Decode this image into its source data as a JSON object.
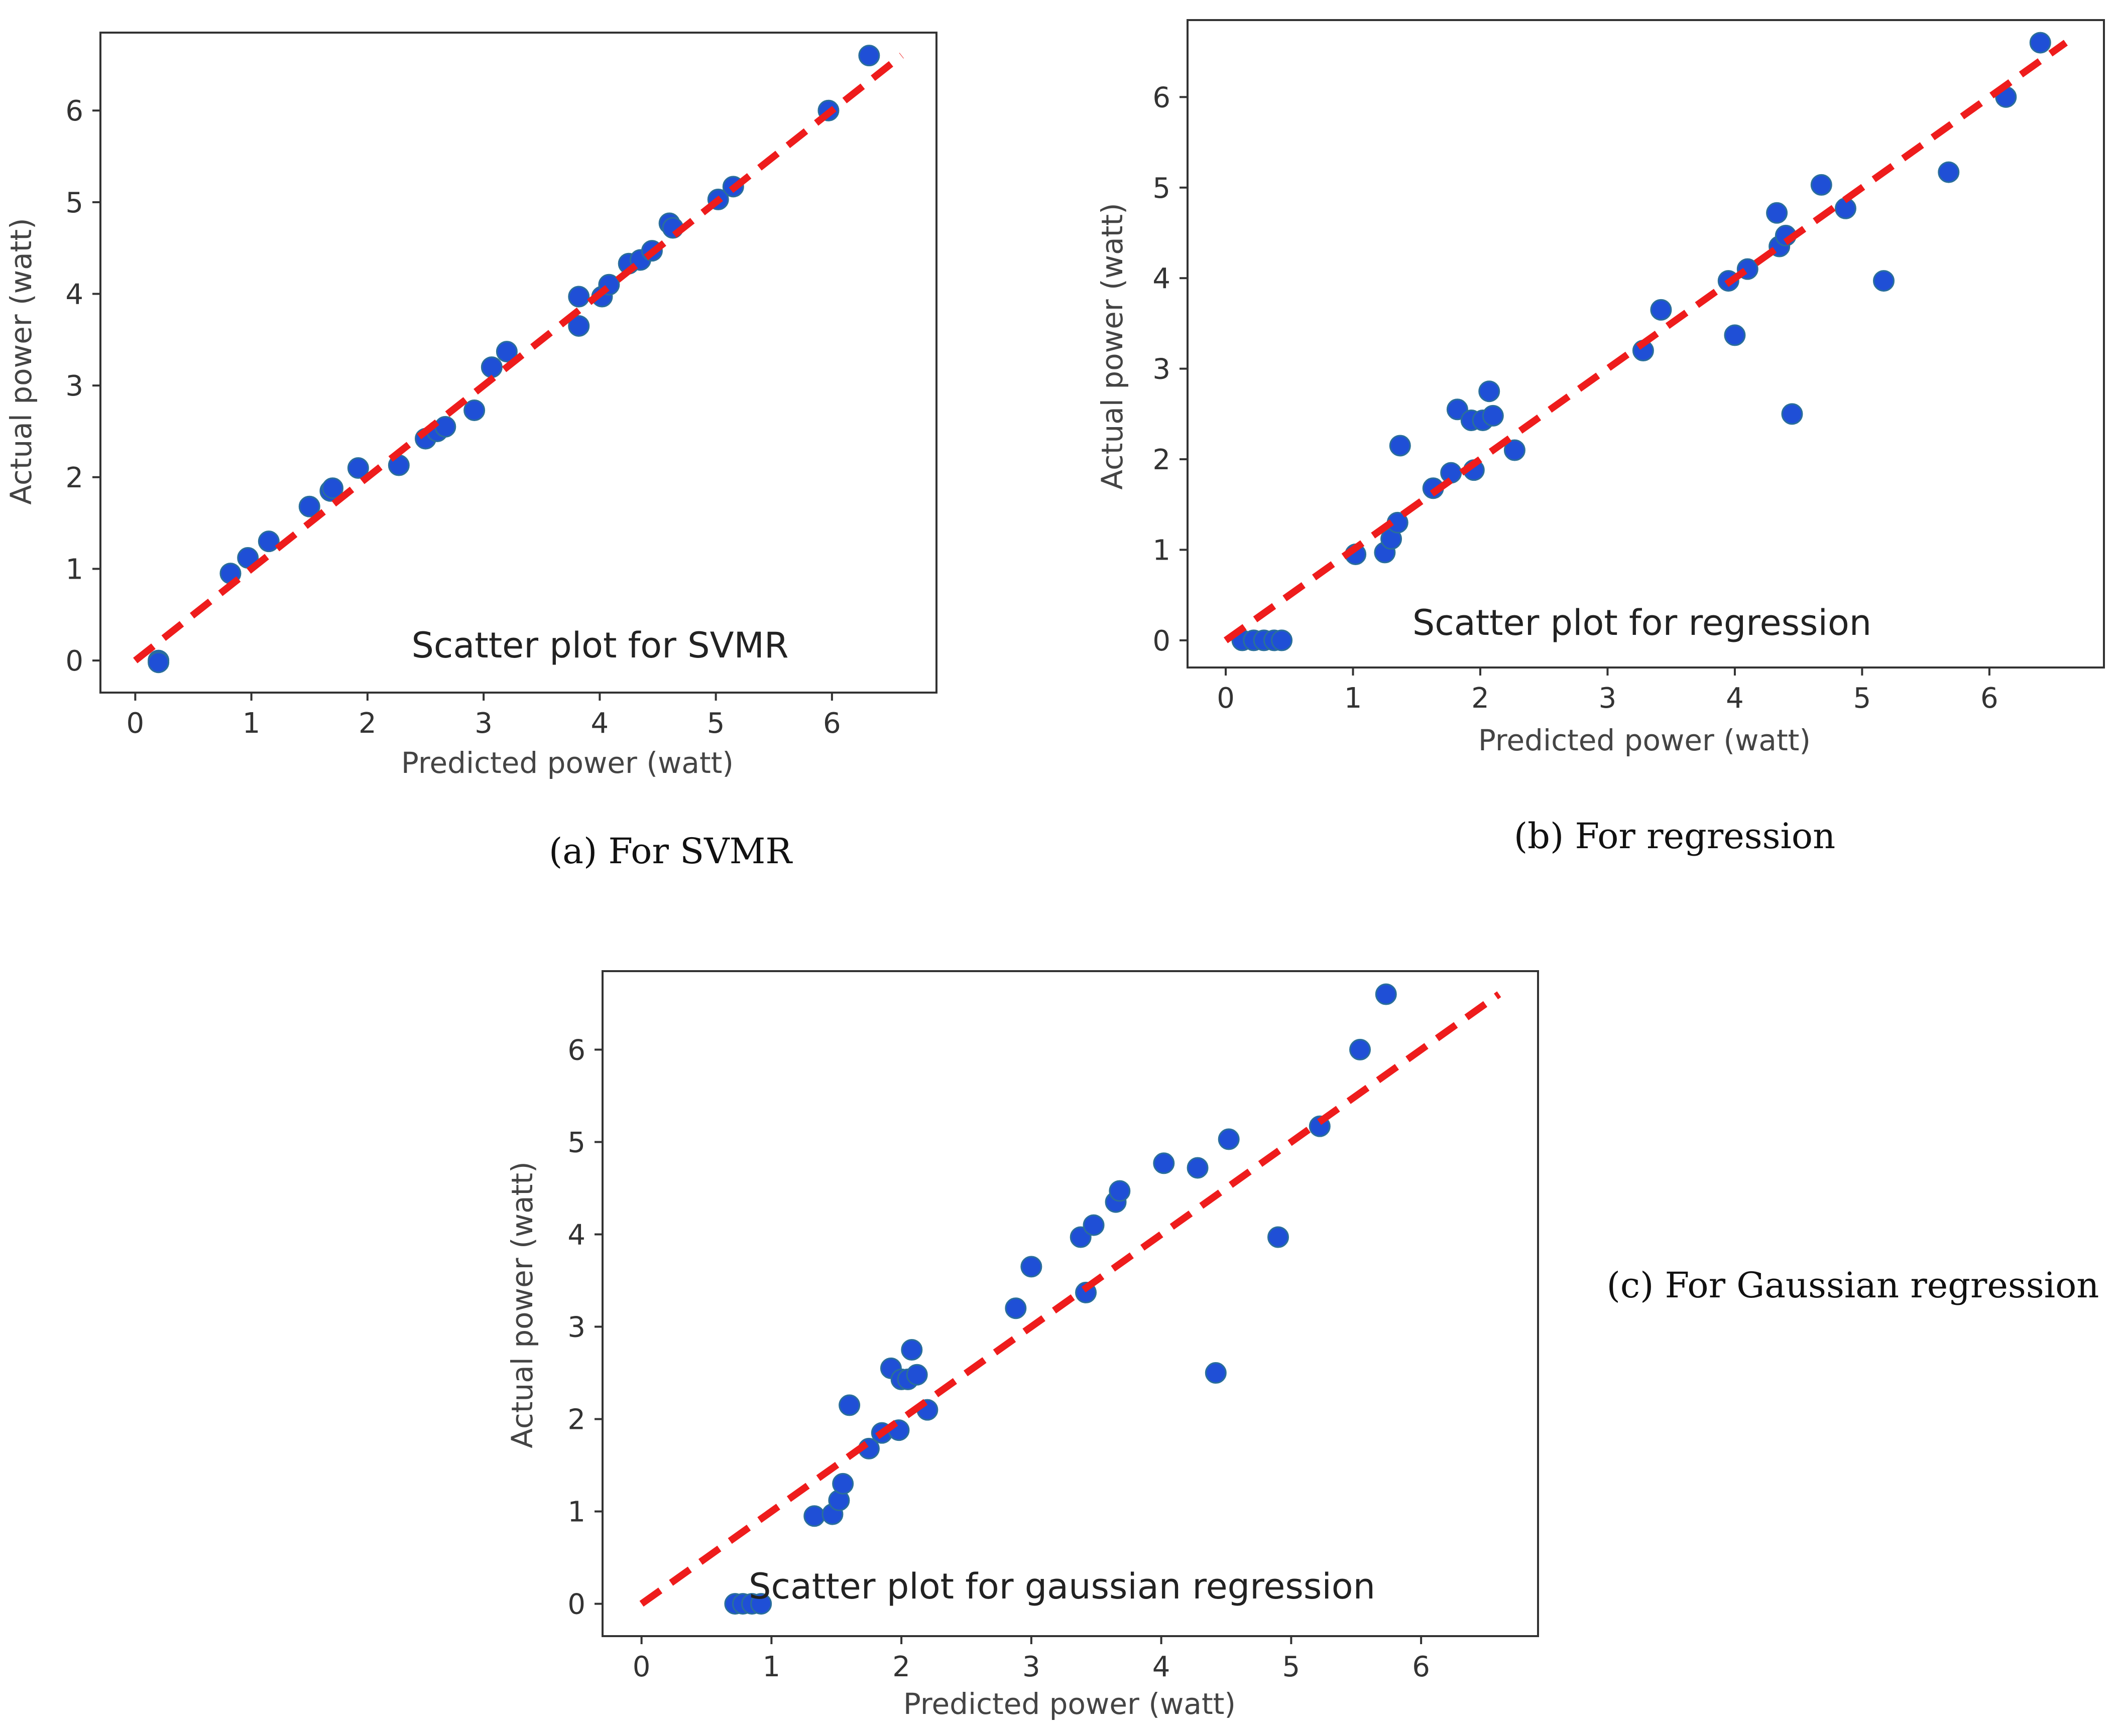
{
  "chart_data": [
    {
      "type": "scatter",
      "caption": "(a) For SVMR",
      "annotation": "Scatter plot for SVMR",
      "xlabel": "Predicted power (watt)",
      "ylabel": "Actual power (watt)",
      "xlim": [
        -0.3,
        6.9
      ],
      "ylim": [
        -0.35,
        6.85
      ],
      "xticks": [
        "0",
        "1",
        "2",
        "3",
        "4",
        "5",
        "6"
      ],
      "yticks": [
        "0",
        "1",
        "2",
        "3",
        "4",
        "5",
        "6"
      ],
      "point_color": "#1f4fd6",
      "line_color": "#ee1c1c",
      "reference_line": {
        "x": [
          0,
          6.6
        ],
        "y": [
          0,
          6.6
        ]
      },
      "x": [
        0.2,
        0.2,
        0.82,
        0.97,
        1.15,
        1.5,
        1.68,
        1.7,
        1.92,
        2.27,
        2.5,
        2.6,
        2.67,
        2.92,
        3.07,
        3.2,
        3.82,
        3.82,
        4.02,
        4.08,
        4.25,
        4.35,
        4.45,
        4.6,
        4.63,
        5.02,
        5.15,
        5.97,
        6.32
      ],
      "y": [
        0.0,
        -0.02,
        0.95,
        1.12,
        1.3,
        1.68,
        1.85,
        1.88,
        2.1,
        2.13,
        2.42,
        2.5,
        2.55,
        2.73,
        3.2,
        3.37,
        3.97,
        3.65,
        3.97,
        4.1,
        4.33,
        4.37,
        4.47,
        4.77,
        4.72,
        5.03,
        5.17,
        6.0,
        6.6
      ]
    },
    {
      "type": "scatter",
      "caption": "(b) For regression",
      "annotation": "Scatter plot for regression",
      "xlabel": "Predicted power (watt)",
      "ylabel": "Actual power (watt)",
      "xlim": [
        -0.3,
        6.9
      ],
      "ylim": [
        -0.3,
        6.85
      ],
      "xticks": [
        "0",
        "1",
        "2",
        "3",
        "4",
        "5",
        "6"
      ],
      "yticks": [
        "0",
        "1",
        "2",
        "3",
        "4",
        "5",
        "6"
      ],
      "point_color": "#1f4fd6",
      "line_color": "#ee1c1c",
      "reference_line": {
        "x": [
          0,
          6.6
        ],
        "y": [
          0,
          6.6
        ]
      },
      "x": [
        0.13,
        0.22,
        0.3,
        0.38,
        0.44,
        1.02,
        1.25,
        1.3,
        1.35,
        1.37,
        1.63,
        1.77,
        1.82,
        1.93,
        1.95,
        2.02,
        2.07,
        2.1,
        2.27,
        3.28,
        3.42,
        3.95,
        4.0,
        4.1,
        4.33,
        4.35,
        4.4,
        4.45,
        4.68,
        4.87,
        5.17,
        5.68,
        6.13,
        6.4
      ],
      "y": [
        0.0,
        0.0,
        0.0,
        0.0,
        0.0,
        0.95,
        0.97,
        1.12,
        1.3,
        2.15,
        1.68,
        1.85,
        2.55,
        2.43,
        1.88,
        2.43,
        2.75,
        2.48,
        2.1,
        3.2,
        3.65,
        3.97,
        3.37,
        4.1,
        4.72,
        4.35,
        4.47,
        2.5,
        5.03,
        4.77,
        3.97,
        5.17,
        6.0,
        6.6
      ]
    },
    {
      "type": "scatter",
      "caption": "(c) For Gaussian regression",
      "annotation": "Scatter plot for gaussian regression",
      "xlabel": "Predicted power (watt)",
      "ylabel": "Actual power (watt)",
      "xlim": [
        -0.3,
        6.9
      ],
      "ylim": [
        -0.35,
        6.85
      ],
      "xticks": [
        "0",
        "1",
        "2",
        "3",
        "4",
        "5",
        "6"
      ],
      "yticks": [
        "0",
        "1",
        "2",
        "3",
        "4",
        "5",
        "6"
      ],
      "point_color": "#1f4fd6",
      "line_color": "#ee1c1c",
      "reference_line": {
        "x": [
          0,
          6.6
        ],
        "y": [
          0,
          6.6
        ]
      },
      "x": [
        0.72,
        0.78,
        0.85,
        0.92,
        1.33,
        1.47,
        1.52,
        1.55,
        1.6,
        1.75,
        1.85,
        1.92,
        1.98,
        2.0,
        2.05,
        2.08,
        2.12,
        2.2,
        2.88,
        3.0,
        3.38,
        3.42,
        3.48,
        3.65,
        3.68,
        4.02,
        4.28,
        4.42,
        4.52,
        4.9,
        5.22,
        5.53,
        5.73
      ],
      "y": [
        0.0,
        0.0,
        0.0,
        0.0,
        0.95,
        0.97,
        1.12,
        1.3,
        2.15,
        1.68,
        1.85,
        2.55,
        1.88,
        2.43,
        2.43,
        2.75,
        2.48,
        2.1,
        3.2,
        3.65,
        3.97,
        3.37,
        4.1,
        4.35,
        4.47,
        4.77,
        4.72,
        2.5,
        5.03,
        3.97,
        5.17,
        6.0,
        6.6
      ]
    }
  ]
}
